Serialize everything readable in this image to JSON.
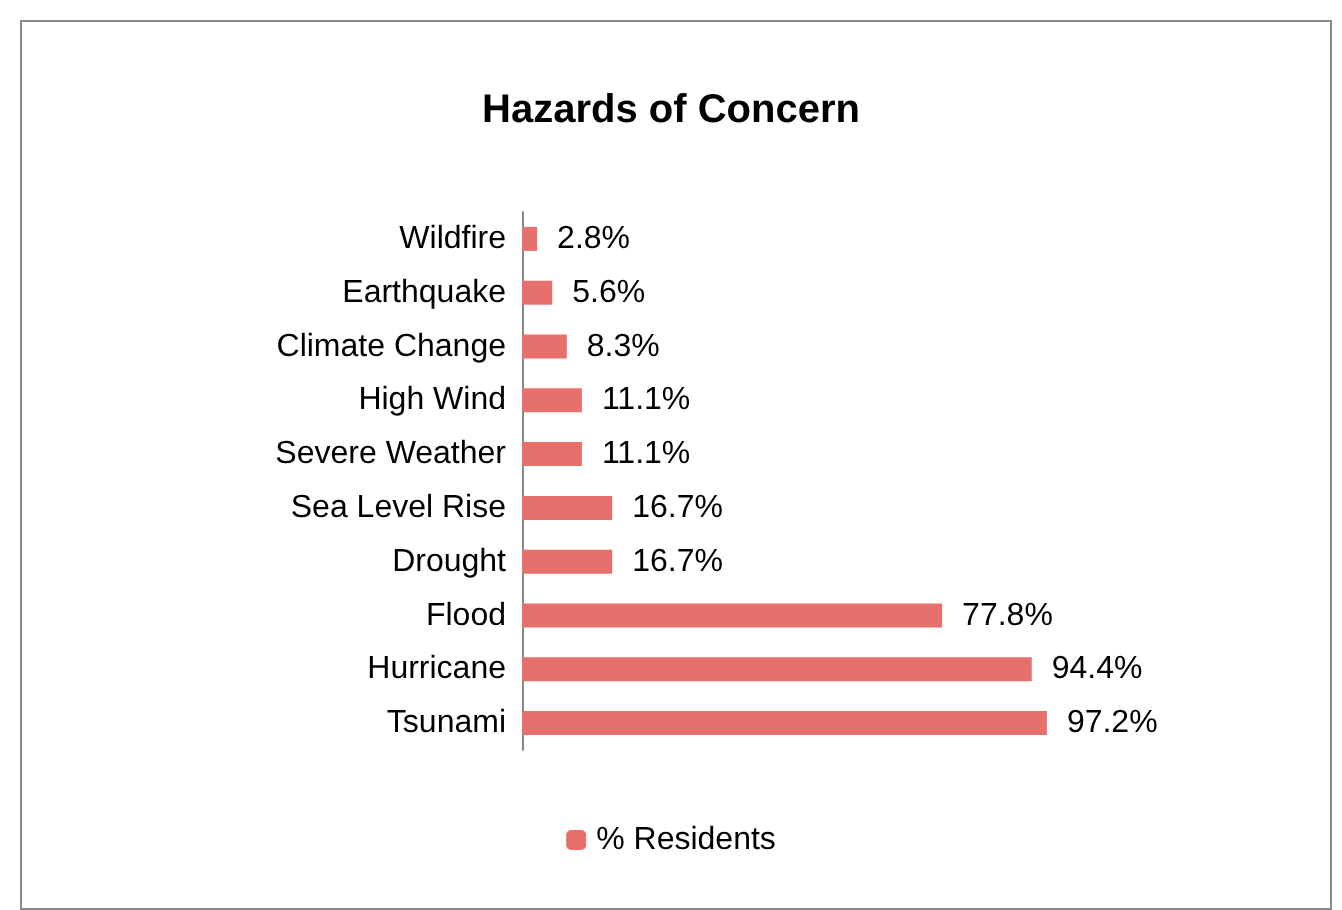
{
  "chart_data": {
    "type": "bar",
    "title": "Hazards of Concern",
    "orientation": "horizontal",
    "categories": [
      "Wildfire",
      "Earthquake",
      "Climate Change",
      "High Wind",
      "Severe Weather",
      "Sea Level Rise",
      "Drought",
      "Flood",
      "Hurricane",
      "Tsunami"
    ],
    "series": [
      {
        "name": "% Residents",
        "color": "#e8706c",
        "values": [
          2.8,
          5.6,
          8.3,
          11.1,
          11.1,
          16.7,
          16.7,
          77.8,
          94.4,
          97.2
        ],
        "value_labels": [
          "2.8%",
          "5.6%",
          "8.3%",
          "11.1%",
          "11.1%",
          "16.7%",
          "16.7%",
          "77.8%",
          "94.4%",
          "97.2%"
        ]
      }
    ],
    "legend": "bottom",
    "grid": false
  }
}
